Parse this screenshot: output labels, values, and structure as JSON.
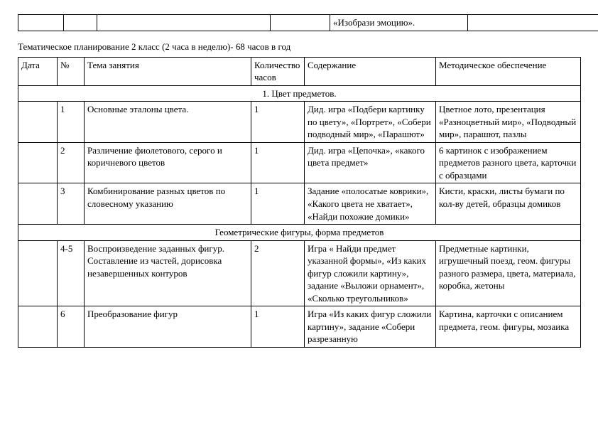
{
  "top_fragment": {
    "c5": "«Изобрази эмоцию»."
  },
  "title": "Тематическое планирование 2 класс (2 часа в неделю)- 68 часов в год",
  "headers": {
    "c1": "Дата",
    "c2": "№",
    "c3": "Тема занятия",
    "c4": "Количество часов",
    "c5": "Содержание",
    "c6": "Методическое обеспечение"
  },
  "section1": "1. Цвет предметов.",
  "rows1": [
    {
      "num": "1",
      "topic": " Основные эталоны цвета.",
      "hours": "1",
      "content": "Дид. игра «Подбери картинку по цвету», «Портрет», «Собери подводный мир», «Парашют»",
      "method": "Цветное лото, презентация «Разноцветный мир», «Подводный мир», парашют, пазлы"
    },
    {
      "num": "2",
      "topic": " Различение фиолетового, серого и коричневого цветов",
      "hours": "1",
      "content": "Дид. игра «Цепочка», «какого цвета предмет»",
      "method": "6 картинок с изображением предметов разного цвета, карточки с образцами"
    },
    {
      "num": "3",
      "topic": " Комбинирование разных цветов по словесному указанию",
      "hours": "1",
      "content": "Задание «полосатые коврики», «Какого цвета не хватает», «Найди похожие домики»",
      "method": "Кисти, краски, листы бумаги по кол-ву детей, образцы домиков"
    }
  ],
  "section2": "Геометрические фигуры, форма предметов",
  "rows2": [
    {
      "num": "4-5",
      "topic": " Воспроизведение заданных фигур. Составление из частей, дорисовка незавершенных контуров",
      "hours": "2",
      "content": "Игра « Найди предмет указанной формы», «Из каких фигур сложили картину», задание «Выложи орнамент», «Сколько треугольников»",
      "method": "Предметные картинки, игрушечный поезд, геом. фигуры разного размера, цвета, материала, коробка, жетоны"
    },
    {
      "num": "6",
      "topic": " Преобразование фигур",
      "hours": "1",
      "content": "Игра «Из каких фигур сложили картину», задание «Собери разрезанную",
      "method": "Картина, карточки с описанием предмета, геом. фигуры, мозаика"
    }
  ]
}
